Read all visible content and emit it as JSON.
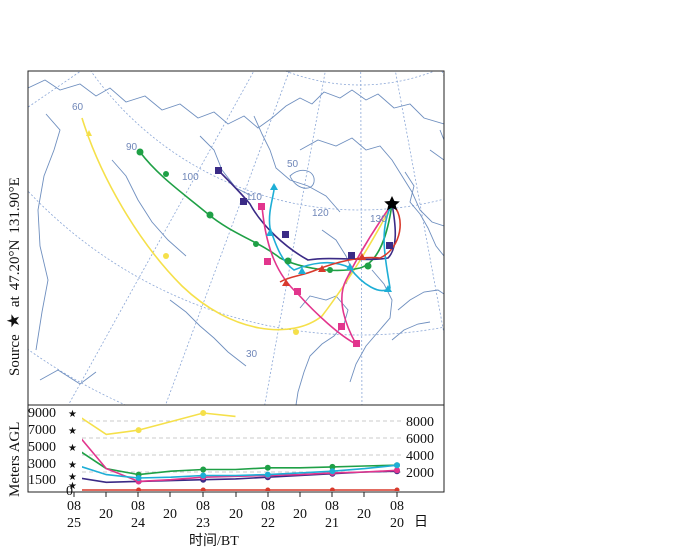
{
  "source_label": {
    "prefix": "Source",
    "lat": "47.20°N",
    "at": "at",
    "lon": "131.90°E"
  },
  "map": {
    "grid_labels": {
      "lon": [
        "60",
        "90",
        "100",
        "110",
        "120",
        "130"
      ],
      "lat": [
        "50",
        "30"
      ]
    }
  },
  "height_panel": {
    "ylabel": "Meters AGL",
    "left_ticks": [
      "9000",
      "7000",
      "5000",
      "3000",
      "1500",
      "0"
    ],
    "right_ticks": [
      "8000",
      "6000",
      "4000",
      "2000"
    ],
    "x_hours": [
      "08",
      "20",
      "08",
      "20",
      "08",
      "20",
      "08",
      "20",
      "08",
      "20",
      "08"
    ],
    "x_days": [
      "25",
      "24",
      "23",
      "22",
      "21",
      "20"
    ],
    "day_unit": "日",
    "xlabel": "时间/BT"
  },
  "colors": {
    "yellow": "#f5e04a",
    "green": "#1fa046",
    "navy": "#3b2b86",
    "magenta": "#e2358d",
    "cyan": "#1eaed6",
    "red": "#d83a2c",
    "grid": "#8aa6d6",
    "coast": "#6f8fbf"
  },
  "trajectories": [
    {
      "color": "yellow",
      "heights": [
        9000,
        6500,
        7000,
        8000,
        9000,
        8600
      ]
    },
    {
      "color": "green",
      "heights": [
        5000,
        2500,
        1800,
        2200,
        2400,
        2400,
        2600,
        2600,
        2700,
        2800,
        2900
      ]
    },
    {
      "color": "navy",
      "heights": [
        1500,
        900,
        1000,
        1100,
        1200,
        1300,
        1500,
        1700,
        1900,
        2100,
        2200
      ]
    },
    {
      "color": "magenta",
      "heights": [
        7000,
        2500,
        1000,
        1200,
        1500,
        1600,
        1700,
        1800,
        2000,
        2100,
        2300
      ]
    },
    {
      "color": "cyan",
      "heights": [
        3000,
        1800,
        1400,
        1500,
        1700,
        1700,
        1800,
        2000,
        2200,
        2500,
        2900
      ]
    },
    {
      "color": "red",
      "heights": [
        0,
        0,
        0,
        0,
        0,
        0,
        0,
        0,
        0,
        0,
        0
      ]
    }
  ]
}
